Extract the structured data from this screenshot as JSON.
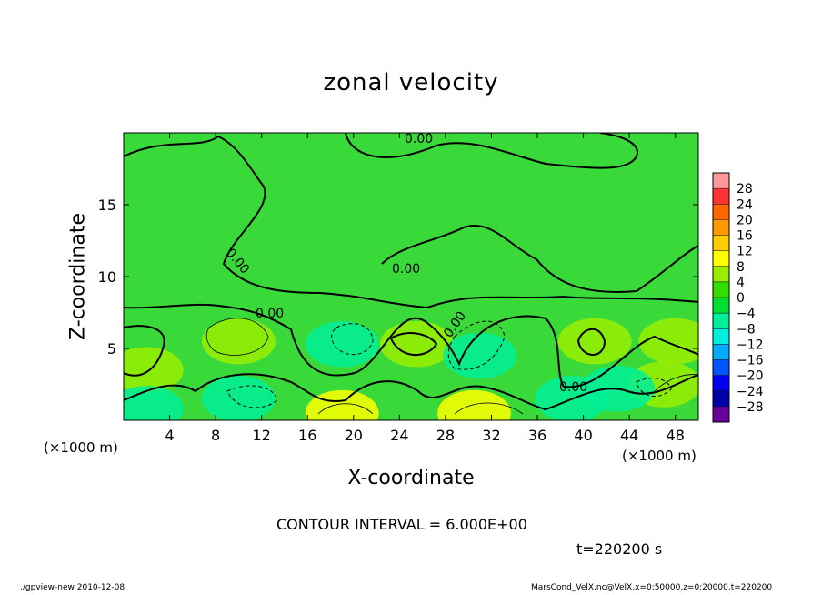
{
  "title": "zonal velocity",
  "contour_interval": "CONTOUR INTERVAL = 6.000E+00",
  "time_label": "t=220200 s",
  "footer_left": "./gpview-new  2010-12-08",
  "footer_right": "MarsCond_VelX.nc@VelX,x=0:50000,z=0:20000,t=220200",
  "chart_data": {
    "type": "heatmap",
    "title": "zonal velocity",
    "xlabel": "X-coordinate",
    "ylabel": "Z-coordinate",
    "x_unit": "(×1000 m)",
    "y_unit": "(×1000 m)",
    "xlim": [
      0,
      50
    ],
    "ylim": [
      0,
      20
    ],
    "x_ticks": [
      4,
      8,
      12,
      16,
      20,
      24,
      28,
      32,
      36,
      40,
      44,
      48
    ],
    "y_ticks": [
      5,
      10,
      15
    ],
    "contour_label": "0.00",
    "colorbar": {
      "levels": [
        28,
        24,
        20,
        16,
        12,
        8,
        4,
        0,
        -4,
        -8,
        -12,
        -16,
        -20,
        -24,
        -28
      ],
      "colors": [
        "#ff9999",
        "#ff3333",
        "#ff6600",
        "#ff9900",
        "#ffcc00",
        "#ffff00",
        "#99ee00",
        "#33dd00",
        "#00dd33",
        "#00ee99",
        "#00eedd",
        "#00aaff",
        "#0055ff",
        "#0000ee",
        "#0000aa",
        "#660099"
      ]
    },
    "anomalies": [
      {
        "x": 10,
        "z": 5.5,
        "value": 7
      },
      {
        "x": 19,
        "z": 5.3,
        "value": -6
      },
      {
        "x": 25.5,
        "z": 5.3,
        "value": 7
      },
      {
        "x": 31,
        "z": 4.5,
        "value": -6
      },
      {
        "x": 41,
        "z": 5.5,
        "value": 6
      },
      {
        "x": 48,
        "z": 5.5,
        "value": 5
      },
      {
        "x": 2,
        "z": 3.5,
        "value": 6
      },
      {
        "x": 10,
        "z": 1.5,
        "value": -7
      },
      {
        "x": 19,
        "z": 0.5,
        "value": 12
      },
      {
        "x": 30.5,
        "z": 0.5,
        "value": 11
      },
      {
        "x": 39,
        "z": 1.5,
        "value": -5
      },
      {
        "x": 47,
        "z": 2.5,
        "value": 6
      },
      {
        "x": 43,
        "z": 2.2,
        "value": -5
      },
      {
        "x": 2,
        "z": 0.8,
        "value": -4
      }
    ]
  }
}
